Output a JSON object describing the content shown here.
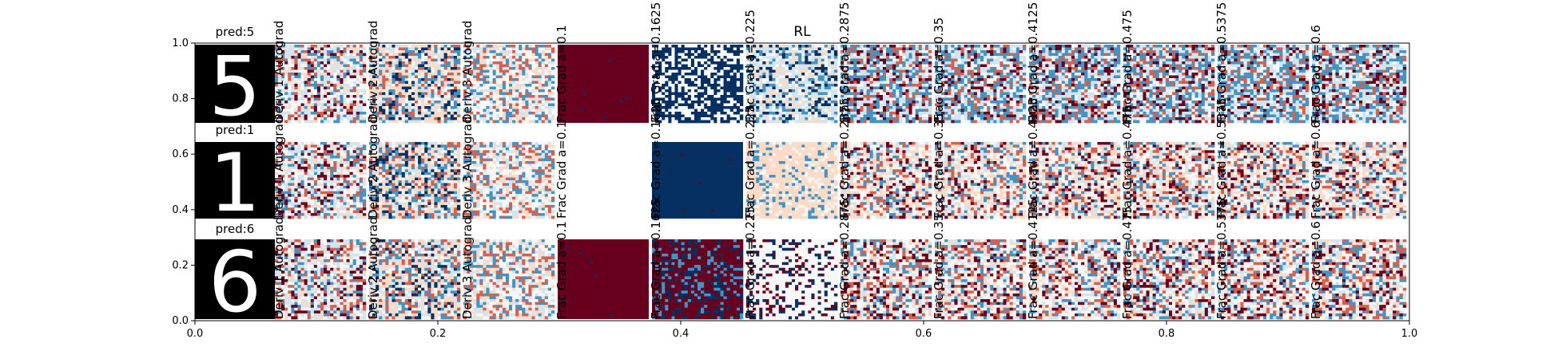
{
  "figure": {
    "center_label": "RL",
    "row_titles": [
      "pred:5",
      "pred:1",
      "pred:6"
    ],
    "column_labels": [
      "",
      "Deriv 1 Autograd",
      "Deriv 2 Autograd",
      "Deriv 3 Autograd",
      "Frac Grad a=0.1",
      "Frac Grad a=0.1625",
      "Frac Grad a=0.225",
      "Frac Grad a=0.2875",
      "Frac Grad a=0.35",
      "Frac Grad a=0.4125",
      "Frac Grad a=0.475",
      "Frac Grad a=0.5375",
      "Frac Grad a=0.6"
    ],
    "colors": {
      "neg_dark": "#053061",
      "neg_mid": "#4393c3",
      "neg_light": "#d1e5f0",
      "neutral": "#f7f7f7",
      "pos_light": "#fddbc7",
      "pos_mid": "#d6604d",
      "pos_dark": "#67001f"
    }
  },
  "chart_data": {
    "type": "heatmap",
    "title": "RL",
    "xlabel": "",
    "ylabel": "",
    "xlim": [
      0.0,
      1.0
    ],
    "ylim": [
      0.0,
      1.0
    ],
    "x_ticks": [
      "0.0",
      "0.2",
      "0.4",
      "0.6",
      "0.8",
      "1.0"
    ],
    "y_ticks": [
      "0.0",
      "0.2",
      "0.4",
      "0.6",
      "0.8",
      "1.0"
    ],
    "grid": false,
    "rows": [
      "pred:5",
      "pred:1",
      "pred:6"
    ],
    "columns": [
      "Deriv 1 Autograd",
      "Deriv 2 Autograd",
      "Deriv 3 Autograd",
      "Frac Grad a=0.1",
      "Frac Grad a=0.1625",
      "Frac Grad a=0.225",
      "Frac Grad a=0.2875",
      "Frac Grad a=0.35",
      "Frac Grad a=0.4125",
      "Frac Grad a=0.475",
      "Frac Grad a=0.5375",
      "Frac Grad a=0.6"
    ],
    "digits": [
      "5",
      "1",
      "6"
    ],
    "panel_styles": [
      [
        "digit",
        "d1",
        "d2",
        "d3",
        "solid-pos",
        "frac-neg-dark",
        "frac-neg-mid",
        "frac-neg",
        "frac-neg",
        "frac-neg",
        "frac-neg",
        "frac-neg",
        "frac-neg"
      ],
      [
        "digit",
        "d1",
        "d2",
        "d3",
        "blank",
        "solid-neg",
        "frac-pos-light",
        "frac-pos",
        "frac-pos",
        "frac-pos",
        "frac-pos",
        "frac-pos",
        "frac-pos"
      ],
      [
        "digit",
        "d1",
        "d2",
        "d3",
        "solid-pos",
        "frac-pos-dark",
        "frac-white",
        "frac-mixed",
        "frac-mixed",
        "frac-mixed",
        "frac-mixed",
        "frac-mixed",
        "frac-mixed"
      ]
    ]
  }
}
